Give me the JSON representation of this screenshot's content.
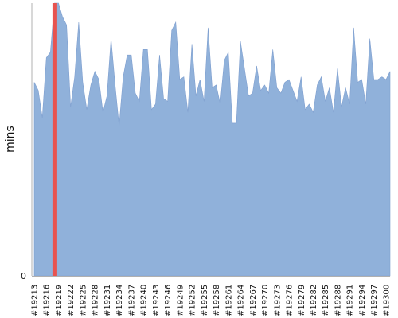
{
  "chart_data": {
    "type": "area",
    "title": "",
    "xlabel": "",
    "ylabel": "mins",
    "y_ticks": [
      "0"
    ],
    "ylim": [
      0,
      100
    ],
    "grid": false,
    "legend": "none",
    "colors": {
      "area": "#90b1da",
      "area_stroke": "#7f9fcf",
      "highlight": "#e8534f",
      "axis": "#b0b0b0"
    },
    "x": [
      "#19213",
      "#19214",
      "#19215",
      "#19216",
      "#19217",
      "#19218",
      "#19219",
      "#19220",
      "#19221",
      "#19222",
      "#19223",
      "#19224",
      "#19225",
      "#19226",
      "#19227",
      "#19228",
      "#19229",
      "#19230",
      "#19231",
      "#19232",
      "#19233",
      "#19234",
      "#19235",
      "#19236",
      "#19237",
      "#19238",
      "#19239",
      "#19240",
      "#19241",
      "#19242",
      "#19243",
      "#19244",
      "#19245",
      "#19246",
      "#19247",
      "#19248",
      "#19249",
      "#19250",
      "#19251",
      "#19252",
      "#19253",
      "#19254",
      "#19255",
      "#19256",
      "#19257",
      "#19258",
      "#19259",
      "#19260",
      "#19261",
      "#19262",
      "#19263",
      "#19264",
      "#19265",
      "#19266",
      "#19267",
      "#19268",
      "#19269",
      "#19270",
      "#19271",
      "#19272",
      "#19273",
      "#19274",
      "#19275",
      "#19276",
      "#19277",
      "#19278",
      "#19279",
      "#19280",
      "#19281",
      "#19282",
      "#19283",
      "#19284",
      "#19285",
      "#19286",
      "#19287",
      "#19288",
      "#19289",
      "#19290",
      "#19291",
      "#19292",
      "#19293",
      "#19294",
      "#19295",
      "#19296",
      "#19297",
      "#19298",
      "#19299",
      "#19300",
      "#19301"
    ],
    "values": [
      71,
      68,
      58,
      80,
      82,
      100,
      100,
      95,
      92,
      62,
      73,
      93,
      71,
      61,
      70,
      75,
      72,
      60,
      66,
      87,
      70,
      55,
      73,
      81,
      81,
      67,
      64,
      83,
      83,
      61,
      63,
      81,
      65,
      64,
      90,
      93,
      72,
      73,
      60,
      85,
      66,
      72,
      64,
      91,
      69,
      70,
      63,
      79,
      82,
      56,
      56,
      86,
      76,
      66,
      67,
      77,
      68,
      70,
      67,
      83,
      69,
      67,
      71,
      72,
      68,
      64,
      73,
      61,
      63,
      60,
      70,
      73,
      64,
      69,
      60,
      76,
      62,
      69,
      63,
      91,
      71,
      72,
      63,
      87,
      72,
      72,
      73,
      72,
      75
    ],
    "highlight": {
      "x": "#19218",
      "value": 100
    },
    "tick_every": 3
  }
}
